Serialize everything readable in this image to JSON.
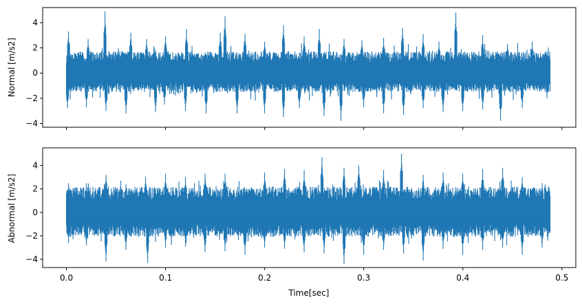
{
  "chart_data": [
    {
      "type": "line",
      "title": "",
      "xlabel": "",
      "ylabel": "Normal [m/s2]",
      "xlim": [
        -0.024,
        0.514
      ],
      "ylim": [
        -4.3,
        5.2
      ],
      "xticks": [
        0.0,
        0.1,
        0.2,
        0.3,
        0.4,
        0.5
      ],
      "xtick_labels_visible": false,
      "yticks": [
        -4,
        -2,
        0,
        2,
        4
      ],
      "ytick_labels": [
        "−4",
        "−2",
        "0",
        "2",
        "4"
      ],
      "grid": false,
      "color": "#1f77b4",
      "series": {
        "x_start": 0.0,
        "x_end": 0.488,
        "description": "dense vibration signal, approx. symmetric about 0",
        "typical_upper": 1.5,
        "typical_lower": -1.3,
        "peaks": [
          {
            "x": 0.002,
            "y": 3.3
          },
          {
            "x": 0.022,
            "y": 2.7
          },
          {
            "x": 0.039,
            "y": 4.9
          },
          {
            "x": 0.065,
            "y": 3.2
          },
          {
            "x": 0.081,
            "y": 2.7
          },
          {
            "x": 0.1,
            "y": 2.9
          },
          {
            "x": 0.121,
            "y": 3.5
          },
          {
            "x": 0.155,
            "y": 3.2
          },
          {
            "x": 0.16,
            "y": 4.5
          },
          {
            "x": 0.18,
            "y": 3.1
          },
          {
            "x": 0.2,
            "y": 2.5
          },
          {
            "x": 0.219,
            "y": 3.8
          },
          {
            "x": 0.24,
            "y": 2.9
          },
          {
            "x": 0.255,
            "y": 3.5
          },
          {
            "x": 0.28,
            "y": 2.7
          },
          {
            "x": 0.298,
            "y": 2.6
          },
          {
            "x": 0.32,
            "y": 2.8
          },
          {
            "x": 0.339,
            "y": 3.6
          },
          {
            "x": 0.36,
            "y": 3.1
          },
          {
            "x": 0.376,
            "y": 2.5
          },
          {
            "x": 0.393,
            "y": 4.8
          },
          {
            "x": 0.42,
            "y": 3.0
          },
          {
            "x": 0.445,
            "y": 2.3
          },
          {
            "x": 0.47,
            "y": 2.5
          },
          {
            "x": 0.485,
            "y": 1.7
          }
        ],
        "troughs": [
          {
            "x": 0.001,
            "y": -2.8
          },
          {
            "x": 0.02,
            "y": -2.7
          },
          {
            "x": 0.04,
            "y": -3.0
          },
          {
            "x": 0.06,
            "y": -3.2
          },
          {
            "x": 0.09,
            "y": -3.1
          },
          {
            "x": 0.099,
            "y": -2.5
          },
          {
            "x": 0.12,
            "y": -3.0
          },
          {
            "x": 0.141,
            "y": -3.2
          },
          {
            "x": 0.172,
            "y": -3.2
          },
          {
            "x": 0.2,
            "y": -3.2
          },
          {
            "x": 0.219,
            "y": -3.5
          },
          {
            "x": 0.235,
            "y": -2.8
          },
          {
            "x": 0.26,
            "y": -3.4
          },
          {
            "x": 0.277,
            "y": -3.8
          },
          {
            "x": 0.3,
            "y": -2.7
          },
          {
            "x": 0.32,
            "y": -3.2
          },
          {
            "x": 0.34,
            "y": -3.3
          },
          {
            "x": 0.36,
            "y": -2.8
          },
          {
            "x": 0.38,
            "y": -3.1
          },
          {
            "x": 0.4,
            "y": -3.0
          },
          {
            "x": 0.42,
            "y": -2.9
          },
          {
            "x": 0.438,
            "y": -3.8
          },
          {
            "x": 0.46,
            "y": -2.8
          },
          {
            "x": 0.485,
            "y": -2.0
          }
        ]
      }
    },
    {
      "type": "line",
      "title": "",
      "xlabel": "Time[sec]",
      "ylabel": "Abnormal [m/s2]",
      "xlim": [
        -0.024,
        0.514
      ],
      "ylim": [
        -4.7,
        5.5
      ],
      "xticks": [
        0.0,
        0.1,
        0.2,
        0.3,
        0.4,
        0.5
      ],
      "xtick_labels": [
        "0.0",
        "0.1",
        "0.2",
        "0.3",
        "0.4",
        "0.5"
      ],
      "yticks": [
        -4,
        -2,
        0,
        2,
        4
      ],
      "ytick_labels": [
        "−4",
        "−2",
        "0",
        "2",
        "4"
      ],
      "grid": false,
      "color": "#1f77b4",
      "series": {
        "x_start": 0.0,
        "x_end": 0.488,
        "description": "dense vibration signal with higher amplitude, approx. symmetric about 0",
        "typical_upper": 1.9,
        "typical_lower": -1.8,
        "peaks": [
          {
            "x": 0.002,
            "y": 2.5
          },
          {
            "x": 0.02,
            "y": 2.5
          },
          {
            "x": 0.04,
            "y": 3.2
          },
          {
            "x": 0.055,
            "y": 2.7
          },
          {
            "x": 0.08,
            "y": 3.0
          },
          {
            "x": 0.1,
            "y": 3.3
          },
          {
            "x": 0.12,
            "y": 3.0
          },
          {
            "x": 0.14,
            "y": 3.3
          },
          {
            "x": 0.16,
            "y": 3.3
          },
          {
            "x": 0.2,
            "y": 3.4
          },
          {
            "x": 0.22,
            "y": 3.7
          },
          {
            "x": 0.24,
            "y": 3.6
          },
          {
            "x": 0.258,
            "y": 4.7
          },
          {
            "x": 0.28,
            "y": 3.8
          },
          {
            "x": 0.295,
            "y": 4.0
          },
          {
            "x": 0.32,
            "y": 3.6
          },
          {
            "x": 0.338,
            "y": 5.0
          },
          {
            "x": 0.36,
            "y": 3.2
          },
          {
            "x": 0.38,
            "y": 3.4
          },
          {
            "x": 0.4,
            "y": 3.3
          },
          {
            "x": 0.42,
            "y": 3.7
          },
          {
            "x": 0.44,
            "y": 3.8
          },
          {
            "x": 0.46,
            "y": 3.0
          },
          {
            "x": 0.48,
            "y": 2.5
          }
        ],
        "troughs": [
          {
            "x": 0.002,
            "y": -2.6
          },
          {
            "x": 0.02,
            "y": -2.8
          },
          {
            "x": 0.04,
            "y": -4.2
          },
          {
            "x": 0.06,
            "y": -3.2
          },
          {
            "x": 0.082,
            "y": -4.3
          },
          {
            "x": 0.1,
            "y": -3.0
          },
          {
            "x": 0.12,
            "y": -2.9
          },
          {
            "x": 0.14,
            "y": -3.4
          },
          {
            "x": 0.16,
            "y": -3.3
          },
          {
            "x": 0.18,
            "y": -3.6
          },
          {
            "x": 0.2,
            "y": -3.0
          },
          {
            "x": 0.22,
            "y": -3.1
          },
          {
            "x": 0.24,
            "y": -3.4
          },
          {
            "x": 0.26,
            "y": -3.5
          },
          {
            "x": 0.28,
            "y": -4.4
          },
          {
            "x": 0.3,
            "y": -3.6
          },
          {
            "x": 0.32,
            "y": -3.2
          },
          {
            "x": 0.34,
            "y": -3.5
          },
          {
            "x": 0.36,
            "y": -4.1
          },
          {
            "x": 0.38,
            "y": -3.1
          },
          {
            "x": 0.4,
            "y": -3.6
          },
          {
            "x": 0.42,
            "y": -3.2
          },
          {
            "x": 0.44,
            "y": -3.0
          },
          {
            "x": 0.46,
            "y": -3.6
          },
          {
            "x": 0.48,
            "y": -3.0
          }
        ]
      }
    }
  ]
}
